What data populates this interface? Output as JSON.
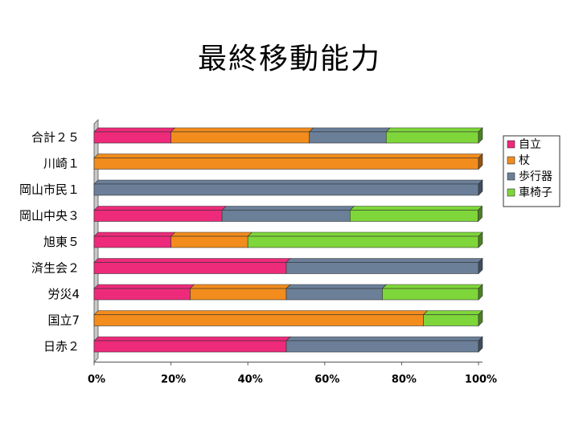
{
  "title": "最終移動能力",
  "chart_data": {
    "type": "bar",
    "orientation": "horizontal",
    "stacked": "percent",
    "categories": [
      "合計２５",
      "川崎１",
      "岡山市民１",
      "岡山中央３",
      "旭東５",
      "済生会２",
      "労災4",
      "国立7",
      "日赤２"
    ],
    "series": [
      {
        "name": "自立",
        "color": "#ee2a7b",
        "values": [
          20,
          0,
          0,
          33.3,
          20,
          50,
          25,
          0,
          50
        ]
      },
      {
        "name": "杖",
        "color": "#f28c1c",
        "values": [
          36,
          100,
          0,
          0,
          20,
          0,
          25,
          85.7,
          0
        ]
      },
      {
        "name": "歩行器",
        "color": "#6b7f99",
        "values": [
          20,
          0,
          100,
          33.3,
          0,
          50,
          25,
          0,
          50
        ]
      },
      {
        "name": "車椅子",
        "color": "#7ed63a",
        "values": [
          24,
          0,
          0,
          33.3,
          60,
          0,
          25,
          14.3,
          0
        ]
      }
    ],
    "x_ticks": [
      "0%",
      "20%",
      "40%",
      "60%",
      "80%",
      "100%"
    ],
    "xlim": [
      0,
      100
    ],
    "grid": false,
    "legend_position": "right"
  }
}
